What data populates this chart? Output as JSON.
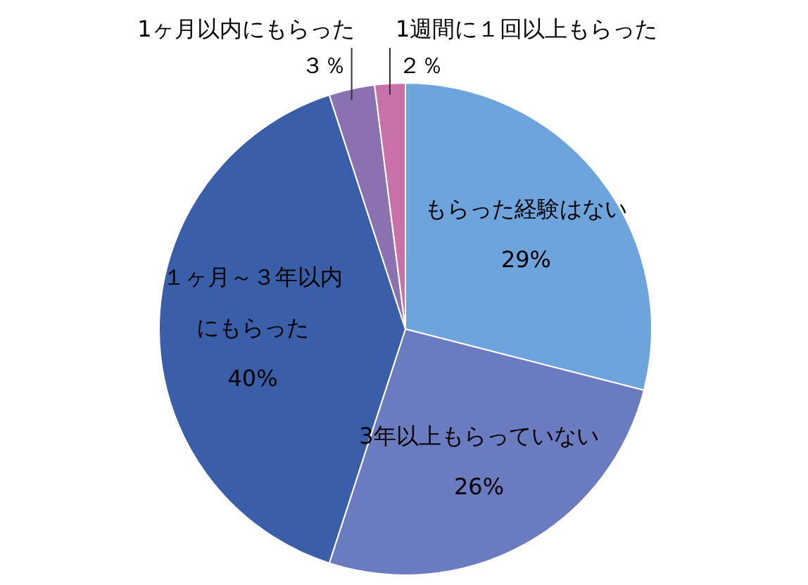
{
  "chart_data": {
    "type": "pie",
    "categories": [
      "もらった経験はない",
      "3年以上もらっていない",
      "１ヶ月～３年以内にもらった",
      "1ヶ月以内にもらった",
      "1週間に１回以上もらった"
    ],
    "values": [
      29,
      26,
      40,
      3,
      2
    ],
    "value_labels": [
      "29%",
      "26%",
      "40%",
      "３％",
      "２％"
    ],
    "colors": [
      "#6ea4dc",
      "#6a7bbf",
      "#3a5ea8",
      "#8a72b0",
      "#c870a8"
    ]
  }
}
